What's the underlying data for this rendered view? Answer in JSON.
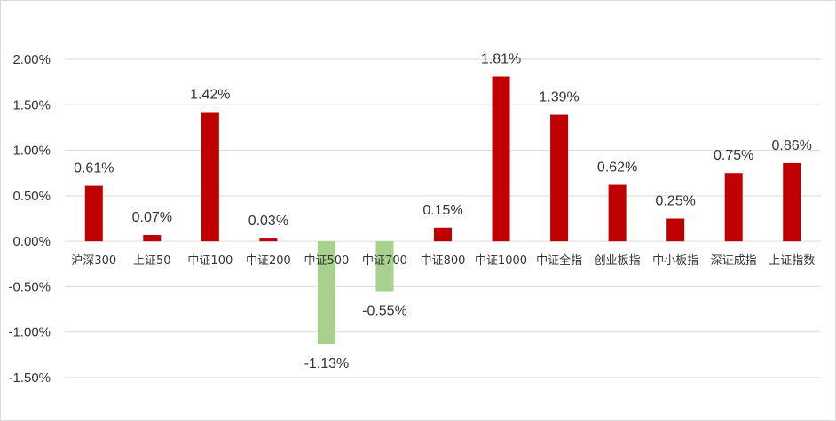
{
  "chart_data": {
    "type": "bar",
    "title": "",
    "xlabel": "",
    "ylabel": "",
    "categories": [
      "沪深300",
      "上证50",
      "中证100",
      "中证200",
      "中证500",
      "中证700",
      "中证800",
      "中证1000",
      "中证全指",
      "创业板指",
      "中小板指",
      "深证成指",
      "上证指数"
    ],
    "values": [
      0.61,
      0.07,
      1.42,
      0.03,
      -1.13,
      -0.55,
      0.15,
      1.81,
      1.39,
      0.62,
      0.25,
      0.75,
      0.86
    ],
    "data_labels": [
      "0.61%",
      "0.07%",
      "1.42%",
      "0.03%",
      "-1.13%",
      "-0.55%",
      "0.15%",
      "1.81%",
      "1.39%",
      "0.62%",
      "0.25%",
      "0.75%",
      "0.86%"
    ],
    "ylim": [
      -1.5,
      2.0
    ],
    "yticks": [
      2.0,
      1.5,
      1.0,
      0.5,
      0.0,
      -0.5,
      -1.0,
      -1.5
    ],
    "ytick_labels": [
      "2.00%",
      "1.50%",
      "1.00%",
      "0.50%",
      "0.00%",
      "-0.50%",
      "-1.00%",
      "-1.50%"
    ],
    "grid": true,
    "legend": "none",
    "colors": {
      "positive": "#c00000",
      "negative": "#a9d18e",
      "grid": "#d9d9d9",
      "text": "#333333"
    }
  }
}
